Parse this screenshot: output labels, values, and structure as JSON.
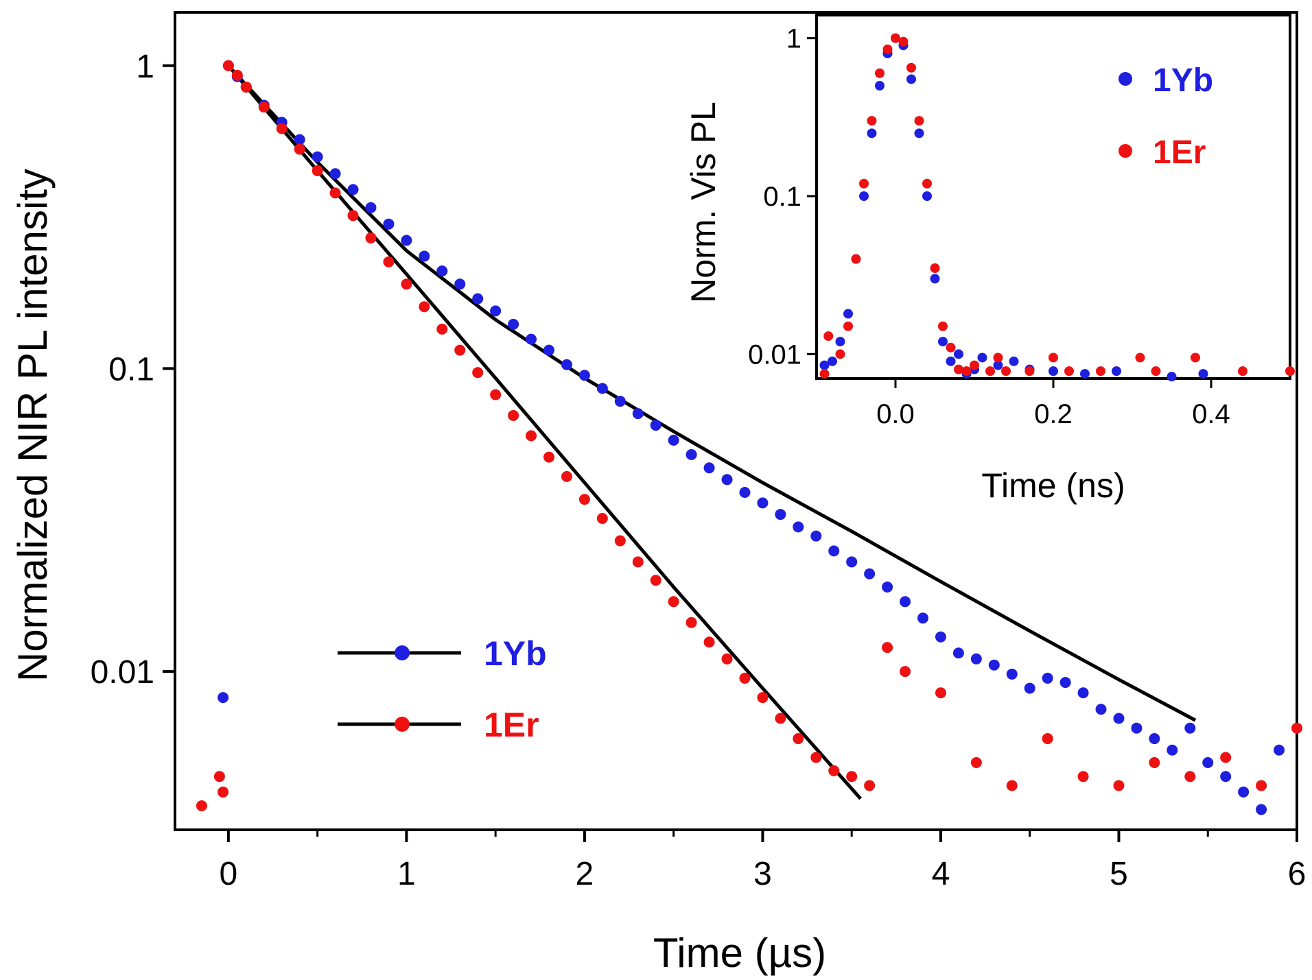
{
  "chart_data": [
    {
      "type": "scatter",
      "title": "",
      "xlabel": "Time (µs)",
      "ylabel": "Normalized NIR PL intensity",
      "xlim": [
        -0.3,
        6
      ],
      "ylim": [
        0.003,
        1.5
      ],
      "yscale": "log",
      "x_ticks": [
        "0",
        "1",
        "2",
        "3",
        "4",
        "5",
        "6"
      ],
      "y_ticks": [
        "0.01",
        "0.1",
        "1"
      ],
      "legend_position": "bottom-left",
      "series": [
        {
          "name": "1Yb",
          "color": "#1f1fe0",
          "marker": "circle",
          "points": [
            [
              -0.03,
              0.0082
            ],
            [
              0.0,
              1.0
            ],
            [
              0.05,
              0.92
            ],
            [
              0.1,
              0.85
            ],
            [
              0.2,
              0.74
            ],
            [
              0.3,
              0.65
            ],
            [
              0.4,
              0.57
            ],
            [
              0.5,
              0.5
            ],
            [
              0.6,
              0.44
            ],
            [
              0.7,
              0.39
            ],
            [
              0.8,
              0.34
            ],
            [
              0.9,
              0.3
            ],
            [
              1.0,
              0.265
            ],
            [
              1.1,
              0.235
            ],
            [
              1.2,
              0.21
            ],
            [
              1.3,
              0.19
            ],
            [
              1.4,
              0.17
            ],
            [
              1.5,
              0.155
            ],
            [
              1.6,
              0.14
            ],
            [
              1.7,
              0.125
            ],
            [
              1.8,
              0.115
            ],
            [
              1.9,
              0.103
            ],
            [
              2.0,
              0.095
            ],
            [
              2.1,
              0.086
            ],
            [
              2.2,
              0.078
            ],
            [
              2.3,
              0.071
            ],
            [
              2.4,
              0.065
            ],
            [
              2.5,
              0.058
            ],
            [
              2.6,
              0.052
            ],
            [
              2.7,
              0.047
            ],
            [
              2.8,
              0.043
            ],
            [
              2.9,
              0.039
            ],
            [
              3.0,
              0.036
            ],
            [
              3.1,
              0.033
            ],
            [
              3.2,
              0.03
            ],
            [
              3.3,
              0.028
            ],
            [
              3.4,
              0.025
            ],
            [
              3.5,
              0.023
            ],
            [
              3.6,
              0.021
            ],
            [
              3.7,
              0.019
            ],
            [
              3.8,
              0.017
            ],
            [
              3.9,
              0.015
            ],
            [
              4.0,
              0.013
            ],
            [
              4.1,
              0.0115
            ],
            [
              4.2,
              0.011
            ],
            [
              4.3,
              0.0105
            ],
            [
              4.4,
              0.0098
            ],
            [
              4.5,
              0.0088
            ],
            [
              4.6,
              0.0095
            ],
            [
              4.7,
              0.0092
            ],
            [
              4.8,
              0.0085
            ],
            [
              4.9,
              0.0075
            ],
            [
              5.0,
              0.007
            ],
            [
              5.1,
              0.0065
            ],
            [
              5.2,
              0.006
            ],
            [
              5.3,
              0.0055
            ],
            [
              5.4,
              0.0065
            ],
            [
              5.5,
              0.005
            ],
            [
              5.6,
              0.0045
            ],
            [
              5.7,
              0.004
            ],
            [
              5.8,
              0.0035
            ],
            [
              5.9,
              0.0055
            ]
          ]
        },
        {
          "name": "1Er",
          "color": "#ee1111",
          "marker": "circle",
          "points": [
            [
              -0.15,
              0.0036
            ],
            [
              -0.05,
              0.0045
            ],
            [
              -0.03,
              0.004
            ],
            [
              0.0,
              1.0
            ],
            [
              0.05,
              0.93
            ],
            [
              0.1,
              0.85
            ],
            [
              0.2,
              0.73
            ],
            [
              0.3,
              0.62
            ],
            [
              0.4,
              0.53
            ],
            [
              0.5,
              0.45
            ],
            [
              0.6,
              0.38
            ],
            [
              0.7,
              0.32
            ],
            [
              0.8,
              0.27
            ],
            [
              0.9,
              0.225
            ],
            [
              1.0,
              0.19
            ],
            [
              1.1,
              0.16
            ],
            [
              1.2,
              0.135
            ],
            [
              1.3,
              0.115
            ],
            [
              1.4,
              0.097
            ],
            [
              1.5,
              0.082
            ],
            [
              1.6,
              0.07
            ],
            [
              1.7,
              0.06
            ],
            [
              1.8,
              0.051
            ],
            [
              1.9,
              0.044
            ],
            [
              2.0,
              0.037
            ],
            [
              2.1,
              0.032
            ],
            [
              2.2,
              0.027
            ],
            [
              2.3,
              0.023
            ],
            [
              2.4,
              0.02
            ],
            [
              2.5,
              0.017
            ],
            [
              2.6,
              0.0145
            ],
            [
              2.7,
              0.0125
            ],
            [
              2.8,
              0.011
            ],
            [
              2.9,
              0.0095
            ],
            [
              3.0,
              0.0082
            ],
            [
              3.1,
              0.007
            ],
            [
              3.2,
              0.006
            ],
            [
              3.3,
              0.0052
            ],
            [
              3.4,
              0.0047
            ],
            [
              3.5,
              0.0045
            ],
            [
              3.6,
              0.0042
            ],
            [
              3.7,
              0.012
            ],
            [
              3.8,
              0.01
            ],
            [
              4.0,
              0.0085
            ],
            [
              4.2,
              0.005
            ],
            [
              4.4,
              0.0042
            ],
            [
              4.6,
              0.006
            ],
            [
              4.8,
              0.0045
            ],
            [
              5.0,
              0.0042
            ],
            [
              5.2,
              0.005
            ],
            [
              5.4,
              0.0045
            ],
            [
              5.6,
              0.0052
            ],
            [
              5.8,
              0.0042
            ],
            [
              6.0,
              0.0065
            ]
          ]
        }
      ],
      "fits": [
        {
          "name": "1Yb fit",
          "color": "#000000",
          "points": [
            [
              0.0,
              1.0
            ],
            [
              0.5,
              0.48
            ],
            [
              1.0,
              0.245
            ],
            [
              1.5,
              0.145
            ],
            [
              2.0,
              0.093
            ],
            [
              2.5,
              0.062
            ],
            [
              3.0,
              0.042
            ],
            [
              3.5,
              0.029
            ],
            [
              4.0,
              0.0198
            ],
            [
              4.5,
              0.0136
            ],
            [
              5.0,
              0.0094
            ],
            [
              5.43,
              0.0069
            ]
          ]
        },
        {
          "name": "1Er fit",
          "color": "#000000",
          "points": [
            [
              0.0,
              1.0
            ],
            [
              0.5,
              0.45
            ],
            [
              1.0,
              0.205
            ],
            [
              1.5,
              0.093
            ],
            [
              2.0,
              0.042
            ],
            [
              2.5,
              0.019
            ],
            [
              3.0,
              0.0088
            ],
            [
              3.5,
              0.0041
            ],
            [
              3.55,
              0.0038
            ]
          ]
        }
      ],
      "legend": [
        {
          "label": "1Yb",
          "color": "#1f1fe0"
        },
        {
          "label": "1Er",
          "color": "#ee1111"
        }
      ]
    },
    {
      "type": "scatter",
      "title": "",
      "xlabel": "Time (ns)",
      "ylabel": "Norm. Vis PL",
      "xlim": [
        -0.1,
        0.5
      ],
      "ylim": [
        0.007,
        1.4
      ],
      "yscale": "log",
      "x_ticks": [
        "0.0",
        "0.2",
        "0.4"
      ],
      "y_ticks": [
        "0.01",
        "0.1",
        "1"
      ],
      "legend_position": "top-right",
      "series": [
        {
          "name": "1Yb",
          "color": "#1f1fe0",
          "marker": "circle",
          "points": [
            [
              -0.09,
              0.0085
            ],
            [
              -0.08,
              0.009
            ],
            [
              -0.07,
              0.012
            ],
            [
              -0.06,
              0.018
            ],
            [
              -0.05,
              0.04
            ],
            [
              -0.04,
              0.1
            ],
            [
              -0.03,
              0.25
            ],
            [
              -0.02,
              0.5
            ],
            [
              -0.01,
              0.8
            ],
            [
              0.0,
              1.0
            ],
            [
              0.01,
              0.9
            ],
            [
              0.02,
              0.55
            ],
            [
              0.03,
              0.25
            ],
            [
              0.04,
              0.1
            ],
            [
              0.05,
              0.03
            ],
            [
              0.06,
              0.012
            ],
            [
              0.07,
              0.009
            ],
            [
              0.08,
              0.01
            ],
            [
              0.09,
              0.0075
            ],
            [
              0.1,
              0.008
            ],
            [
              0.11,
              0.0095
            ],
            [
              0.13,
              0.0085
            ],
            [
              0.15,
              0.009
            ],
            [
              0.17,
              0.008
            ],
            [
              0.2,
              0.0078
            ],
            [
              0.24,
              0.0075
            ],
            [
              0.28,
              0.0078
            ],
            [
              0.35,
              0.0072
            ],
            [
              0.39,
              0.0075
            ]
          ]
        },
        {
          "name": "1Er",
          "color": "#ee1111",
          "marker": "circle",
          "points": [
            [
              -0.09,
              0.0075
            ],
            [
              -0.085,
              0.013
            ],
            [
              -0.07,
              0.01
            ],
            [
              -0.06,
              0.015
            ],
            [
              -0.05,
              0.04
            ],
            [
              -0.04,
              0.12
            ],
            [
              -0.03,
              0.3
            ],
            [
              -0.02,
              0.6
            ],
            [
              -0.01,
              0.85
            ],
            [
              0.0,
              1.0
            ],
            [
              0.01,
              0.95
            ],
            [
              0.02,
              0.65
            ],
            [
              0.03,
              0.3
            ],
            [
              0.04,
              0.12
            ],
            [
              0.05,
              0.035
            ],
            [
              0.06,
              0.015
            ],
            [
              0.07,
              0.011
            ],
            [
              0.08,
              0.008
            ],
            [
              0.09,
              0.0078
            ],
            [
              0.1,
              0.0085
            ],
            [
              0.12,
              0.0078
            ],
            [
              0.13,
              0.0095
            ],
            [
              0.14,
              0.0078
            ],
            [
              0.17,
              0.0078
            ],
            [
              0.2,
              0.0095
            ],
            [
              0.22,
              0.0078
            ],
            [
              0.26,
              0.0078
            ],
            [
              0.31,
              0.0095
            ],
            [
              0.33,
              0.0078
            ],
            [
              0.38,
              0.0095
            ],
            [
              0.44,
              0.0078
            ],
            [
              0.5,
              0.0078
            ]
          ]
        }
      ],
      "legend": [
        {
          "label": "1Yb",
          "color": "#1f1fe0"
        },
        {
          "label": "1Er",
          "color": "#ee1111"
        }
      ]
    }
  ]
}
